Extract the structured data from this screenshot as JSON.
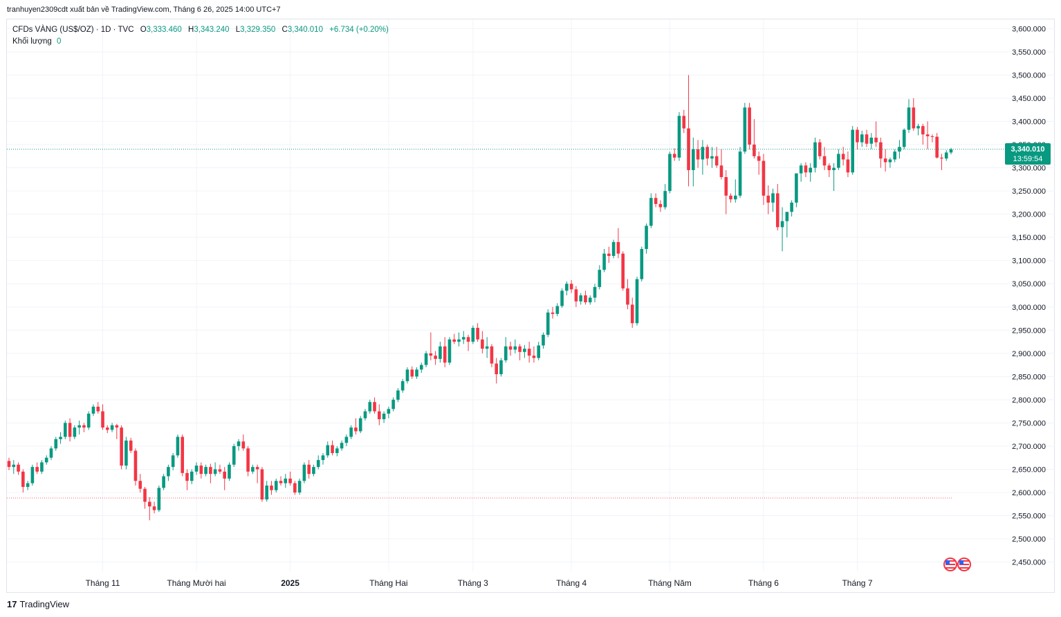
{
  "header": {
    "publish_text": "tranhuyen2309cdt xuất bản về TradingView.com, Tháng 6 26, 2025 14:00 UTC+7"
  },
  "legend": {
    "symbol": "CFDs VÀNG (US$/OZ) · 1D · TVC",
    "open_label": "O",
    "open": "3,333.460",
    "high_label": "H",
    "high": "3,343.240",
    "low_label": "L",
    "low": "3,329.350",
    "close_label": "C",
    "close": "3,340.010",
    "change": "+6.734 (+0.20%)",
    "volume_label": "Khối lượng",
    "volume": "0"
  },
  "price_badge": {
    "price": "3,340.010",
    "countdown": "13:59:54"
  },
  "footer": {
    "brand": "TradingView"
  },
  "colors": {
    "up": "#089981",
    "down": "#f23645",
    "grid": "#f0f3fa",
    "text": "#131722",
    "price_line": "#089981",
    "ref_line": "#f23645"
  },
  "chart_data": {
    "type": "candlestick",
    "ylim": [
      2430,
      3620
    ],
    "y_ticks": [
      2450,
      2500,
      2550,
      2600,
      2650,
      2700,
      2750,
      2800,
      2850,
      2900,
      2950,
      3000,
      3050,
      3100,
      3150,
      3200,
      3250,
      3300,
      3350,
      3400,
      3450,
      3500,
      3550,
      3600
    ],
    "y_tick_labels": [
      "2,450.000",
      "2,500.000",
      "2,550.000",
      "2,600.000",
      "2,650.000",
      "2,700.000",
      "2,750.000",
      "2,800.000",
      "2,850.000",
      "2,900.000",
      "2,950.000",
      "3,000.000",
      "3,050.000",
      "3,100.000",
      "3,150.000",
      "3,200.000",
      "3,250.000",
      "3,300.000",
      "3,350.000",
      "3,400.000",
      "3,450.000",
      "3,500.000",
      "3,550.000",
      "3,600.000"
    ],
    "x_labels": [
      {
        "label": "Tháng 11",
        "index": 20
      },
      {
        "label": "Tháng Mười hai",
        "index": 40
      },
      {
        "label": "2025",
        "index": 60
      },
      {
        "label": "Tháng Hai",
        "index": 81
      },
      {
        "label": "Tháng 3",
        "index": 99
      },
      {
        "label": "Tháng 4",
        "index": 120
      },
      {
        "label": "Tháng Năm",
        "index": 141
      },
      {
        "label": "Tháng 6",
        "index": 161
      },
      {
        "label": "Tháng 7",
        "index": 181
      }
    ],
    "last_price": 3340.01,
    "reference_level": 2588,
    "ohlc": [
      [
        2668,
        2675,
        2648,
        2655
      ],
      [
        2655,
        2670,
        2640,
        2660
      ],
      [
        2660,
        2665,
        2638,
        2645
      ],
      [
        2645,
        2650,
        2600,
        2612
      ],
      [
        2612,
        2625,
        2605,
        2620
      ],
      [
        2620,
        2660,
        2615,
        2655
      ],
      [
        2655,
        2665,
        2640,
        2645
      ],
      [
        2645,
        2670,
        2640,
        2665
      ],
      [
        2665,
        2680,
        2660,
        2675
      ],
      [
        2675,
        2700,
        2670,
        2695
      ],
      [
        2695,
        2720,
        2690,
        2715
      ],
      [
        2715,
        2730,
        2705,
        2720
      ],
      [
        2720,
        2755,
        2715,
        2750
      ],
      [
        2750,
        2760,
        2710,
        2720
      ],
      [
        2720,
        2745,
        2715,
        2740
      ],
      [
        2740,
        2755,
        2725,
        2745
      ],
      [
        2745,
        2750,
        2730,
        2740
      ],
      [
        2740,
        2775,
        2735,
        2770
      ],
      [
        2770,
        2790,
        2765,
        2785
      ],
      [
        2785,
        2795,
        2770,
        2775
      ],
      [
        2775,
        2790,
        2735,
        2740
      ],
      [
        2740,
        2745,
        2728,
        2735
      ],
      [
        2735,
        2750,
        2730,
        2745
      ],
      [
        2745,
        2748,
        2715,
        2740
      ],
      [
        2740,
        2745,
        2650,
        2658
      ],
      [
        2658,
        2720,
        2650,
        2712
      ],
      [
        2712,
        2718,
        2685,
        2690
      ],
      [
        2690,
        2695,
        2615,
        2625
      ],
      [
        2625,
        2640,
        2600,
        2608
      ],
      [
        2608,
        2612,
        2565,
        2580
      ],
      [
        2580,
        2590,
        2540,
        2570
      ],
      [
        2570,
        2580,
        2555,
        2562
      ],
      [
        2562,
        2615,
        2558,
        2610
      ],
      [
        2610,
        2640,
        2605,
        2635
      ],
      [
        2635,
        2660,
        2625,
        2655
      ],
      [
        2655,
        2685,
        2648,
        2680
      ],
      [
        2680,
        2725,
        2675,
        2720
      ],
      [
        2720,
        2725,
        2635,
        2642
      ],
      [
        2642,
        2650,
        2605,
        2625
      ],
      [
        2625,
        2650,
        2618,
        2645
      ],
      [
        2645,
        2665,
        2638,
        2658
      ],
      [
        2658,
        2665,
        2630,
        2640
      ],
      [
        2640,
        2660,
        2635,
        2655
      ],
      [
        2655,
        2662,
        2620,
        2640
      ],
      [
        2640,
        2665,
        2635,
        2650
      ],
      [
        2650,
        2660,
        2640,
        2645
      ],
      [
        2645,
        2655,
        2605,
        2630
      ],
      [
        2630,
        2665,
        2625,
        2660
      ],
      [
        2660,
        2705,
        2655,
        2700
      ],
      [
        2700,
        2715,
        2690,
        2710
      ],
      [
        2710,
        2725,
        2690,
        2695
      ],
      [
        2695,
        2700,
        2635,
        2645
      ],
      [
        2645,
        2660,
        2640,
        2655
      ],
      [
        2655,
        2660,
        2620,
        2650
      ],
      [
        2650,
        2655,
        2580,
        2585
      ],
      [
        2585,
        2625,
        2580,
        2615
      ],
      [
        2615,
        2625,
        2595,
        2605
      ],
      [
        2605,
        2630,
        2600,
        2625
      ],
      [
        2625,
        2635,
        2615,
        2620
      ],
      [
        2620,
        2640,
        2610,
        2630
      ],
      [
        2630,
        2645,
        2615,
        2620
      ],
      [
        2620,
        2625,
        2595,
        2600
      ],
      [
        2600,
        2630,
        2595,
        2625
      ],
      [
        2625,
        2665,
        2620,
        2660
      ],
      [
        2660,
        2670,
        2630,
        2640
      ],
      [
        2640,
        2660,
        2635,
        2655
      ],
      [
        2655,
        2680,
        2650,
        2670
      ],
      [
        2670,
        2685,
        2660,
        2680
      ],
      [
        2680,
        2710,
        2675,
        2702
      ],
      [
        2702,
        2712,
        2680,
        2685
      ],
      [
        2685,
        2700,
        2678,
        2695
      ],
      [
        2695,
        2712,
        2690,
        2707
      ],
      [
        2707,
        2725,
        2700,
        2720
      ],
      [
        2720,
        2745,
        2715,
        2740
      ],
      [
        2740,
        2760,
        2725,
        2732
      ],
      [
        2732,
        2765,
        2728,
        2760
      ],
      [
        2760,
        2780,
        2755,
        2775
      ],
      [
        2775,
        2800,
        2770,
        2795
      ],
      [
        2795,
        2805,
        2770,
        2775
      ],
      [
        2775,
        2790,
        2745,
        2758
      ],
      [
        2758,
        2775,
        2750,
        2770
      ],
      [
        2770,
        2785,
        2760,
        2780
      ],
      [
        2780,
        2805,
        2775,
        2800
      ],
      [
        2800,
        2825,
        2795,
        2820
      ],
      [
        2820,
        2845,
        2815,
        2840
      ],
      [
        2840,
        2870,
        2835,
        2865
      ],
      [
        2865,
        2872,
        2845,
        2850
      ],
      [
        2850,
        2870,
        2845,
        2865
      ],
      [
        2865,
        2880,
        2858,
        2875
      ],
      [
        2875,
        2905,
        2870,
        2900
      ],
      [
        2900,
        2945,
        2885,
        2895
      ],
      [
        2895,
        2905,
        2875,
        2888
      ],
      [
        2888,
        2925,
        2880,
        2915
      ],
      [
        2915,
        2935,
        2870,
        2880
      ],
      [
        2880,
        2935,
        2875,
        2930
      ],
      [
        2930,
        2942,
        2920,
        2925
      ],
      [
        2925,
        2945,
        2915,
        2930
      ],
      [
        2930,
        2948,
        2920,
        2935
      ],
      [
        2935,
        2940,
        2905,
        2925
      ],
      [
        2925,
        2960,
        2920,
        2955
      ],
      [
        2955,
        2965,
        2925,
        2930
      ],
      [
        2930,
        2948,
        2900,
        2910
      ],
      [
        2910,
        2935,
        2890,
        2915
      ],
      [
        2915,
        2920,
        2870,
        2878
      ],
      [
        2878,
        2890,
        2835,
        2855
      ],
      [
        2855,
        2890,
        2850,
        2885
      ],
      [
        2885,
        2935,
        2880,
        2915
      ],
      [
        2915,
        2925,
        2895,
        2908
      ],
      [
        2908,
        2930,
        2900,
        2915
      ],
      [
        2915,
        2920,
        2885,
        2903
      ],
      [
        2903,
        2918,
        2890,
        2910
      ],
      [
        2910,
        2925,
        2880,
        2895
      ],
      [
        2895,
        2915,
        2880,
        2890
      ],
      [
        2890,
        2925,
        2885,
        2917
      ],
      [
        2917,
        2945,
        2910,
        2940
      ],
      [
        2940,
        2995,
        2935,
        2988
      ],
      [
        2988,
        3000,
        2975,
        2985
      ],
      [
        2985,
        3008,
        2980,
        3002
      ],
      [
        3002,
        3040,
        2998,
        3035
      ],
      [
        3035,
        3055,
        3025,
        3050
      ],
      [
        3050,
        3058,
        3030,
        3038
      ],
      [
        3038,
        3045,
        3000,
        3012
      ],
      [
        3012,
        3030,
        3005,
        3025
      ],
      [
        3025,
        3035,
        3005,
        3010
      ],
      [
        3010,
        3025,
        3005,
        3020
      ],
      [
        3020,
        3050,
        3010,
        3043
      ],
      [
        3043,
        3090,
        3038,
        3080
      ],
      [
        3080,
        3125,
        3075,
        3115
      ],
      [
        3115,
        3130,
        3095,
        3110
      ],
      [
        3110,
        3145,
        3105,
        3140
      ],
      [
        3140,
        3170,
        3105,
        3115
      ],
      [
        3115,
        3120,
        3035,
        3040
      ],
      [
        3040,
        3060,
        2995,
        3005
      ],
      [
        3005,
        3020,
        2955,
        2965
      ],
      [
        2965,
        3065,
        2960,
        3060
      ],
      [
        3060,
        3130,
        3055,
        3125
      ],
      [
        3125,
        3180,
        3115,
        3175
      ],
      [
        3175,
        3245,
        3170,
        3235
      ],
      [
        3235,
        3245,
        3215,
        3222
      ],
      [
        3222,
        3230,
        3205,
        3215
      ],
      [
        3215,
        3265,
        3210,
        3250
      ],
      [
        3250,
        3335,
        3245,
        3330
      ],
      [
        3330,
        3342,
        3315,
        3322
      ],
      [
        3322,
        3420,
        3315,
        3412
      ],
      [
        3412,
        3425,
        3375,
        3385
      ],
      [
        3385,
        3500,
        3260,
        3295
      ],
      [
        3295,
        3365,
        3260,
        3340
      ],
      [
        3340,
        3360,
        3300,
        3318
      ],
      [
        3318,
        3360,
        3285,
        3345
      ],
      [
        3345,
        3350,
        3305,
        3320
      ],
      [
        3320,
        3345,
        3300,
        3325
      ],
      [
        3325,
        3345,
        3300,
        3305
      ],
      [
        3305,
        3340,
        3275,
        3280
      ],
      [
        3280,
        3295,
        3200,
        3240
      ],
      [
        3240,
        3245,
        3225,
        3232
      ],
      [
        3232,
        3275,
        3225,
        3240
      ],
      [
        3240,
        3345,
        3235,
        3335
      ],
      [
        3335,
        3440,
        3330,
        3430
      ],
      [
        3430,
        3440,
        3340,
        3350
      ],
      [
        3350,
        3405,
        3320,
        3325
      ],
      [
        3325,
        3335,
        3285,
        3315
      ],
      [
        3315,
        3330,
        3220,
        3240
      ],
      [
        3240,
        3262,
        3200,
        3225
      ],
      [
        3225,
        3255,
        3205,
        3245
      ],
      [
        3245,
        3265,
        3165,
        3172
      ],
      [
        3172,
        3215,
        3120,
        3185
      ],
      [
        3185,
        3200,
        3150,
        3205
      ],
      [
        3205,
        3230,
        3195,
        3225
      ],
      [
        3225,
        3280,
        3215,
        3288
      ],
      [
        3288,
        3310,
        3270,
        3305
      ],
      [
        3305,
        3312,
        3280,
        3290
      ],
      [
        3290,
        3310,
        3270,
        3300
      ],
      [
        3300,
        3365,
        3290,
        3355
      ],
      [
        3355,
        3362,
        3318,
        3325
      ],
      [
        3325,
        3345,
        3295,
        3305
      ],
      [
        3305,
        3310,
        3280,
        3295
      ],
      [
        3295,
        3310,
        3250,
        3300
      ],
      [
        3300,
        3340,
        3295,
        3330
      ],
      [
        3330,
        3345,
        3305,
        3318
      ],
      [
        3318,
        3335,
        3280,
        3290
      ],
      [
        3290,
        3390,
        3285,
        3382
      ],
      [
        3382,
        3388,
        3340,
        3355
      ],
      [
        3355,
        3380,
        3345,
        3372
      ],
      [
        3372,
        3382,
        3345,
        3352
      ],
      [
        3352,
        3375,
        3340,
        3365
      ],
      [
        3365,
        3400,
        3345,
        3355
      ],
      [
        3355,
        3365,
        3300,
        3320
      ],
      [
        3320,
        3340,
        3292,
        3312
      ],
      [
        3312,
        3322,
        3300,
        3318
      ],
      [
        3318,
        3340,
        3312,
        3335
      ],
      [
        3335,
        3360,
        3320,
        3345
      ],
      [
        3345,
        3385,
        3340,
        3382
      ],
      [
        3382,
        3448,
        3375,
        3430
      ],
      [
        3430,
        3450,
        3380,
        3385
      ],
      [
        3385,
        3395,
        3370,
        3390
      ],
      [
        3390,
        3395,
        3350,
        3372
      ],
      [
        3372,
        3400,
        3340,
        3368
      ],
      [
        3368,
        3372,
        3355,
        3367
      ],
      [
        3367,
        3375,
        3320,
        3322
      ],
      [
        3322,
        3330,
        3295,
        3320
      ],
      [
        3320,
        3338,
        3315,
        3333
      ],
      [
        3333,
        3343,
        3329,
        3340
      ]
    ]
  }
}
